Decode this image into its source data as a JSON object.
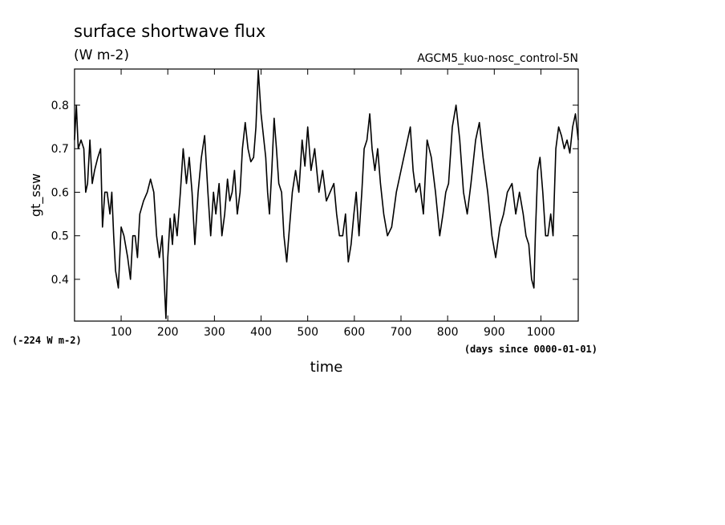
{
  "chart_data": {
    "type": "line",
    "title": "surface shortwave flux",
    "subtitle": "(W m-2)",
    "annotation_right": "AGCM5_kuo-nosc_control-5N",
    "annotation_offset": "(-224 W m-2)",
    "x_units": "(days since 0000-01-01)",
    "xlabel": "time",
    "ylabel": "gt_ssw",
    "color": "#000000",
    "xlim": [
      0,
      1080
    ],
    "ylim": [
      0.304,
      0.883
    ],
    "xticks": [
      100,
      200,
      300,
      400,
      500,
      600,
      700,
      800,
      900,
      1000
    ],
    "yticks": [
      0.4,
      0.5,
      0.6,
      0.7,
      0.8
    ],
    "x": [
      0,
      4,
      8,
      14,
      20,
      24,
      28,
      33,
      38,
      43,
      50,
      56,
      60,
      65,
      70,
      76,
      80,
      84,
      88,
      94,
      100,
      106,
      114,
      120,
      125,
      130,
      135,
      140,
      148,
      156,
      163,
      170,
      176,
      182,
      188,
      196,
      200,
      205,
      210,
      214,
      220,
      227,
      233,
      240,
      246,
      252,
      258,
      265,
      272,
      279,
      286,
      292,
      298,
      303,
      310,
      316,
      322,
      328,
      333,
      338,
      343,
      349,
      355,
      360,
      366,
      372,
      378,
      384,
      389,
      394,
      400,
      406,
      410,
      414,
      418,
      423,
      428,
      433,
      438,
      444,
      449,
      455,
      461,
      467,
      474,
      481,
      488,
      494,
      500,
      507,
      515,
      524,
      532,
      540,
      548,
      556,
      562,
      568,
      575,
      581,
      587,
      593,
      599,
      604,
      610,
      616,
      621,
      627,
      633,
      638,
      644,
      650,
      656,
      663,
      671,
      680,
      690,
      700,
      710,
      720,
      726,
      732,
      740,
      748,
      756,
      765,
      774,
      783,
      790,
      796,
      802,
      810,
      818,
      826,
      834,
      842,
      850,
      860,
      868,
      876,
      886,
      895,
      903,
      912,
      920,
      928,
      938,
      946,
      954,
      962,
      968,
      974,
      980,
      985,
      988,
      993,
      998,
      1004,
      1010,
      1015,
      1021,
      1026,
      1032,
      1038,
      1044,
      1050,
      1056,
      1062,
      1068,
      1074,
      1080
    ],
    "values": [
      0.72,
      0.8,
      0.7,
      0.72,
      0.7,
      0.6,
      0.62,
      0.72,
      0.62,
      0.65,
      0.68,
      0.7,
      0.52,
      0.6,
      0.6,
      0.55,
      0.6,
      0.5,
      0.42,
      0.38,
      0.52,
      0.5,
      0.45,
      0.4,
      0.5,
      0.5,
      0.45,
      0.55,
      0.58,
      0.6,
      0.63,
      0.6,
      0.5,
      0.45,
      0.5,
      0.31,
      0.45,
      0.54,
      0.48,
      0.55,
      0.5,
      0.6,
      0.7,
      0.62,
      0.68,
      0.6,
      0.48,
      0.6,
      0.68,
      0.73,
      0.6,
      0.5,
      0.6,
      0.55,
      0.62,
      0.5,
      0.55,
      0.63,
      0.58,
      0.6,
      0.65,
      0.55,
      0.6,
      0.7,
      0.76,
      0.7,
      0.67,
      0.68,
      0.75,
      0.88,
      0.78,
      0.72,
      0.68,
      0.6,
      0.55,
      0.65,
      0.77,
      0.7,
      0.62,
      0.6,
      0.5,
      0.44,
      0.52,
      0.6,
      0.65,
      0.6,
      0.72,
      0.66,
      0.75,
      0.65,
      0.7,
      0.6,
      0.65,
      0.58,
      0.6,
      0.62,
      0.55,
      0.5,
      0.5,
      0.55,
      0.44,
      0.48,
      0.55,
      0.6,
      0.5,
      0.6,
      0.7,
      0.72,
      0.78,
      0.7,
      0.65,
      0.7,
      0.62,
      0.55,
      0.5,
      0.52,
      0.6,
      0.65,
      0.7,
      0.75,
      0.65,
      0.6,
      0.62,
      0.55,
      0.72,
      0.68,
      0.6,
      0.5,
      0.55,
      0.6,
      0.62,
      0.75,
      0.8,
      0.72,
      0.6,
      0.55,
      0.62,
      0.72,
      0.76,
      0.68,
      0.6,
      0.5,
      0.45,
      0.52,
      0.55,
      0.6,
      0.62,
      0.55,
      0.6,
      0.55,
      0.5,
      0.48,
      0.4,
      0.38,
      0.5,
      0.65,
      0.68,
      0.6,
      0.5,
      0.5,
      0.55,
      0.5,
      0.7,
      0.75,
      0.73,
      0.7,
      0.72,
      0.69,
      0.75,
      0.78,
      0.72
    ]
  }
}
